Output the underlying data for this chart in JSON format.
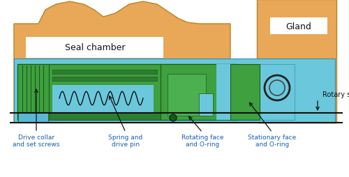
{
  "bg_color": "#ffffff",
  "orange": "#E8A857",
  "blue": "#6BC8DC",
  "green": "#4CAF50",
  "green_dark": "#2E7D32",
  "black": "#111111",
  "white": "#ffffff",
  "label_color": "#1a5fa8",
  "seal_chamber_text": "Seal chamber",
  "gland_text": "Gland",
  "rotary_shaft_text": "Rotary shaft",
  "ann_labels": [
    "Drive collar\nand set screws",
    "Spring and\ndrive pin",
    "Rotating face\nand O-ring",
    "Stationary face\nand O-ring"
  ]
}
